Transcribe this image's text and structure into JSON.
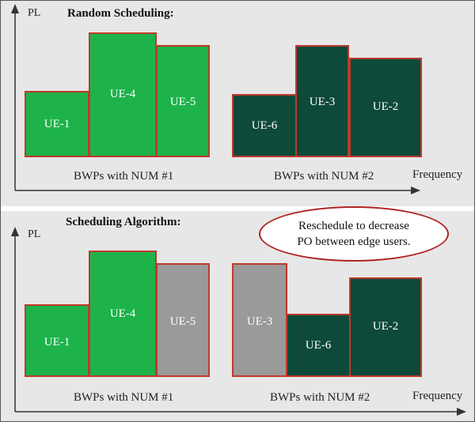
{
  "colors": {
    "bright": "#1db34a",
    "dark": "#0d4a3a",
    "gray": "#9a9a9a",
    "border": "#c0392b"
  },
  "axes": {
    "y_label": "PL",
    "x_label": "Frequency"
  },
  "top_panel": {
    "title": "Random Scheduling:",
    "group_labels": [
      "BWPs with NUM #1",
      "BWPs with NUM #2"
    ],
    "blocks": [
      {
        "label": "UE-1",
        "fill": "bright"
      },
      {
        "label": "UE-4",
        "fill": "bright"
      },
      {
        "label": "UE-5",
        "fill": "bright"
      },
      {
        "label": "UE-6",
        "fill": "dark"
      },
      {
        "label": "UE-3",
        "fill": "dark"
      },
      {
        "label": "UE-2",
        "fill": "dark"
      }
    ]
  },
  "bottom_panel": {
    "title": "Scheduling Algorithm:",
    "callout": [
      "Reschedule to decrease",
      "PO between edge users."
    ],
    "group_labels": [
      "BWPs with NUM #1",
      "BWPs with NUM #2"
    ],
    "blocks": [
      {
        "label": "UE-1",
        "fill": "bright"
      },
      {
        "label": "UE-4",
        "fill": "bright"
      },
      {
        "label": "UE-5",
        "fill": "gray"
      },
      {
        "label": "UE-3",
        "fill": "gray"
      },
      {
        "label": "UE-6",
        "fill": "dark"
      },
      {
        "label": "UE-2",
        "fill": "dark"
      }
    ]
  }
}
